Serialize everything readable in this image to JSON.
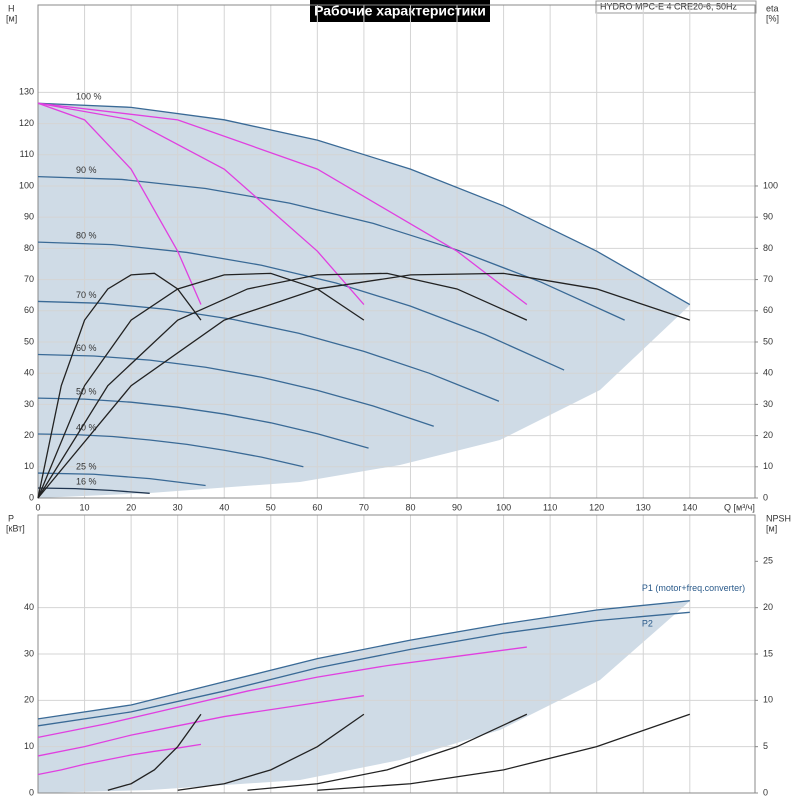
{
  "chart_data": [
    {
      "type": "line",
      "title": "Рабочие характеристики",
      "subtitle": "HYDRO MPC-E 4 CRE20-6, 50Hz",
      "ylabel": "H",
      "yunit": "[м]",
      "y2label": "eta",
      "y2unit": "[%]",
      "xlabel": "Q [м³/ч]",
      "xlim": [
        0,
        154
      ],
      "xticks": [
        0,
        10,
        20,
        30,
        40,
        50,
        60,
        70,
        80,
        90,
        100,
        110,
        120,
        130,
        140
      ],
      "ylim": [
        0,
        158
      ],
      "yticks": [
        0,
        10,
        20,
        30,
        40,
        50,
        60,
        70,
        80,
        90,
        100,
        110,
        120,
        130
      ],
      "y2lim": [
        0,
        158
      ],
      "y2ticks": [
        0,
        10,
        20,
        30,
        40,
        50,
        60,
        70,
        80,
        90,
        100
      ],
      "grid": true,
      "series": [
        {
          "name": "100 %",
          "color": "#3a6a96",
          "x": [
            0,
            20,
            40,
            60,
            80,
            100,
            120,
            140
          ],
          "values": [
            126.5,
            125.2,
            121.2,
            114.7,
            105.4,
            93.6,
            79.1,
            62
          ]
        },
        {
          "name": "90 %",
          "color": "#3a6a96",
          "x": [
            0,
            18,
            36,
            54,
            72,
            90,
            108,
            126
          ],
          "values": [
            103,
            102.1,
            99.2,
            94.5,
            88,
            79.5,
            69.2,
            57
          ]
        },
        {
          "name": "80 %",
          "color": "#3a6a96",
          "x": [
            0,
            16,
            32,
            48,
            64,
            80,
            96,
            113
          ],
          "values": [
            82,
            81.2,
            78.7,
            74.6,
            68.9,
            61.5,
            52.4,
            41
          ]
        },
        {
          "name": "70 %",
          "color": "#3a6a96",
          "x": [
            0,
            14,
            28,
            42,
            56,
            70,
            84,
            99
          ],
          "values": [
            63,
            62.4,
            60.4,
            57.2,
            52.8,
            47,
            40,
            31
          ]
        },
        {
          "name": "60 %",
          "color": "#3a6a96",
          "x": [
            0,
            12,
            24,
            36,
            48,
            60,
            72,
            85
          ],
          "values": [
            46,
            45.5,
            44.2,
            41.9,
            38.7,
            34.5,
            29.5,
            23
          ]
        },
        {
          "name": "50 %",
          "color": "#3a6a96",
          "x": [
            0,
            10,
            20,
            30,
            40,
            50,
            60,
            71
          ],
          "values": [
            32,
            31.7,
            30.7,
            29.1,
            26.9,
            24.1,
            20.6,
            16
          ]
        },
        {
          "name": "40 %",
          "color": "#3a6a96",
          "x": [
            0,
            8,
            16,
            24,
            32,
            40,
            48,
            57
          ],
          "values": [
            20.5,
            20.3,
            19.7,
            18.6,
            17.2,
            15.3,
            13.1,
            10
          ]
        },
        {
          "name": "25 %",
          "color": "#3a6a96",
          "x": [
            0,
            12,
            24,
            36
          ],
          "values": [
            8,
            7.6,
            6.2,
            4
          ]
        },
        {
          "name": "16 %",
          "color": "#1f3550",
          "x": [
            0,
            8,
            16,
            24
          ],
          "values": [
            3.2,
            3,
            2.4,
            1.5
          ]
        },
        {
          "color": "#e040e0",
          "x": [
            0,
            10,
            20,
            30,
            35
          ],
          "values": [
            126.5,
            121.2,
            105.4,
            79.1,
            62
          ]
        },
        {
          "color": "#e040e0",
          "x": [
            0,
            20,
            40,
            60,
            70
          ],
          "values": [
            126.5,
            121.2,
            105.4,
            79.1,
            62
          ]
        },
        {
          "color": "#e040e0",
          "x": [
            0,
            30,
            60,
            90,
            105
          ],
          "values": [
            126.5,
            121.2,
            105.4,
            79.1,
            62
          ]
        },
        {
          "color": "#222222",
          "axis": "y2",
          "x": [
            0,
            20,
            40,
            60,
            80,
            100,
            120,
            140
          ],
          "values": [
            0,
            36,
            57,
            67,
            71.5,
            72,
            67,
            57
          ]
        },
        {
          "color": "#222222",
          "axis": "y2",
          "x": [
            0,
            15,
            30,
            45,
            60,
            75,
            90,
            105
          ],
          "values": [
            0,
            36,
            57,
            67,
            71.5,
            72,
            67,
            57
          ]
        },
        {
          "color": "#222222",
          "axis": "y2",
          "x": [
            0,
            10,
            20,
            30,
            40,
            50,
            60,
            70
          ],
          "values": [
            0,
            36,
            57,
            67,
            71.5,
            72,
            67,
            57
          ]
        },
        {
          "color": "#222222",
          "axis": "y2",
          "x": [
            0,
            5,
            10,
            15,
            20,
            25,
            30,
            35
          ],
          "values": [
            0,
            36,
            57,
            67,
            71.5,
            72,
            67,
            57
          ]
        }
      ]
    },
    {
      "type": "line",
      "ylabel": "P",
      "yunit": "[кВт]",
      "y2label": "NPSH",
      "y2unit": "[м]",
      "xlim": [
        0,
        154
      ],
      "ylim": [
        0,
        60
      ],
      "yticks": [
        0,
        10,
        20,
        30,
        40
      ],
      "y2lim": [
        0,
        30
      ],
      "y2ticks": [
        0,
        5,
        10,
        15,
        20,
        25
      ],
      "grid": true,
      "series": [
        {
          "name": "P1 (motor+freq.converter)",
          "color": "#3a6a96",
          "x": [
            0,
            20,
            40,
            60,
            80,
            100,
            120,
            140
          ],
          "values": [
            16,
            19,
            24,
            29,
            33,
            36.5,
            39.5,
            41.5
          ]
        },
        {
          "name": "P2",
          "color": "#3a6a96",
          "x": [
            0,
            20,
            40,
            60,
            80,
            100,
            120,
            140
          ],
          "values": [
            14.5,
            17.5,
            22,
            27,
            31,
            34.5,
            37.2,
            39
          ]
        },
        {
          "color": "#e040e0",
          "x": [
            0,
            15,
            30,
            45,
            60,
            75,
            90,
            105
          ],
          "values": [
            12,
            15,
            18.5,
            22,
            25,
            27.5,
            29.5,
            31.5
          ]
        },
        {
          "color": "#e040e0",
          "x": [
            0,
            10,
            20,
            30,
            40,
            50,
            60,
            70
          ],
          "values": [
            8,
            10,
            12.5,
            14.5,
            16.5,
            18,
            19.5,
            21
          ]
        },
        {
          "color": "#e040e0",
          "x": [
            0,
            5,
            10,
            15,
            20,
            25,
            30,
            35
          ],
          "values": [
            4,
            5,
            6.2,
            7.2,
            8.2,
            9,
            9.7,
            10.5
          ]
        },
        {
          "color": "#222222",
          "axis": "y2",
          "x": [
            60,
            80,
            100,
            120,
            140
          ],
          "values": [
            0.3,
            1,
            2.5,
            5,
            8.5
          ]
        },
        {
          "color": "#222222",
          "axis": "y2",
          "x": [
            45,
            60,
            75,
            90,
            105
          ],
          "values": [
            0.3,
            1,
            2.5,
            5,
            8.5
          ]
        },
        {
          "color": "#222222",
          "axis": "y2",
          "x": [
            30,
            40,
            50,
            60,
            70
          ],
          "values": [
            0.3,
            1,
            2.5,
            5,
            8.5
          ]
        },
        {
          "color": "#222222",
          "axis": "y2",
          "x": [
            15,
            20,
            25,
            30,
            35
          ],
          "values": [
            0.3,
            1,
            2.5,
            5,
            8.5
          ]
        }
      ]
    }
  ]
}
